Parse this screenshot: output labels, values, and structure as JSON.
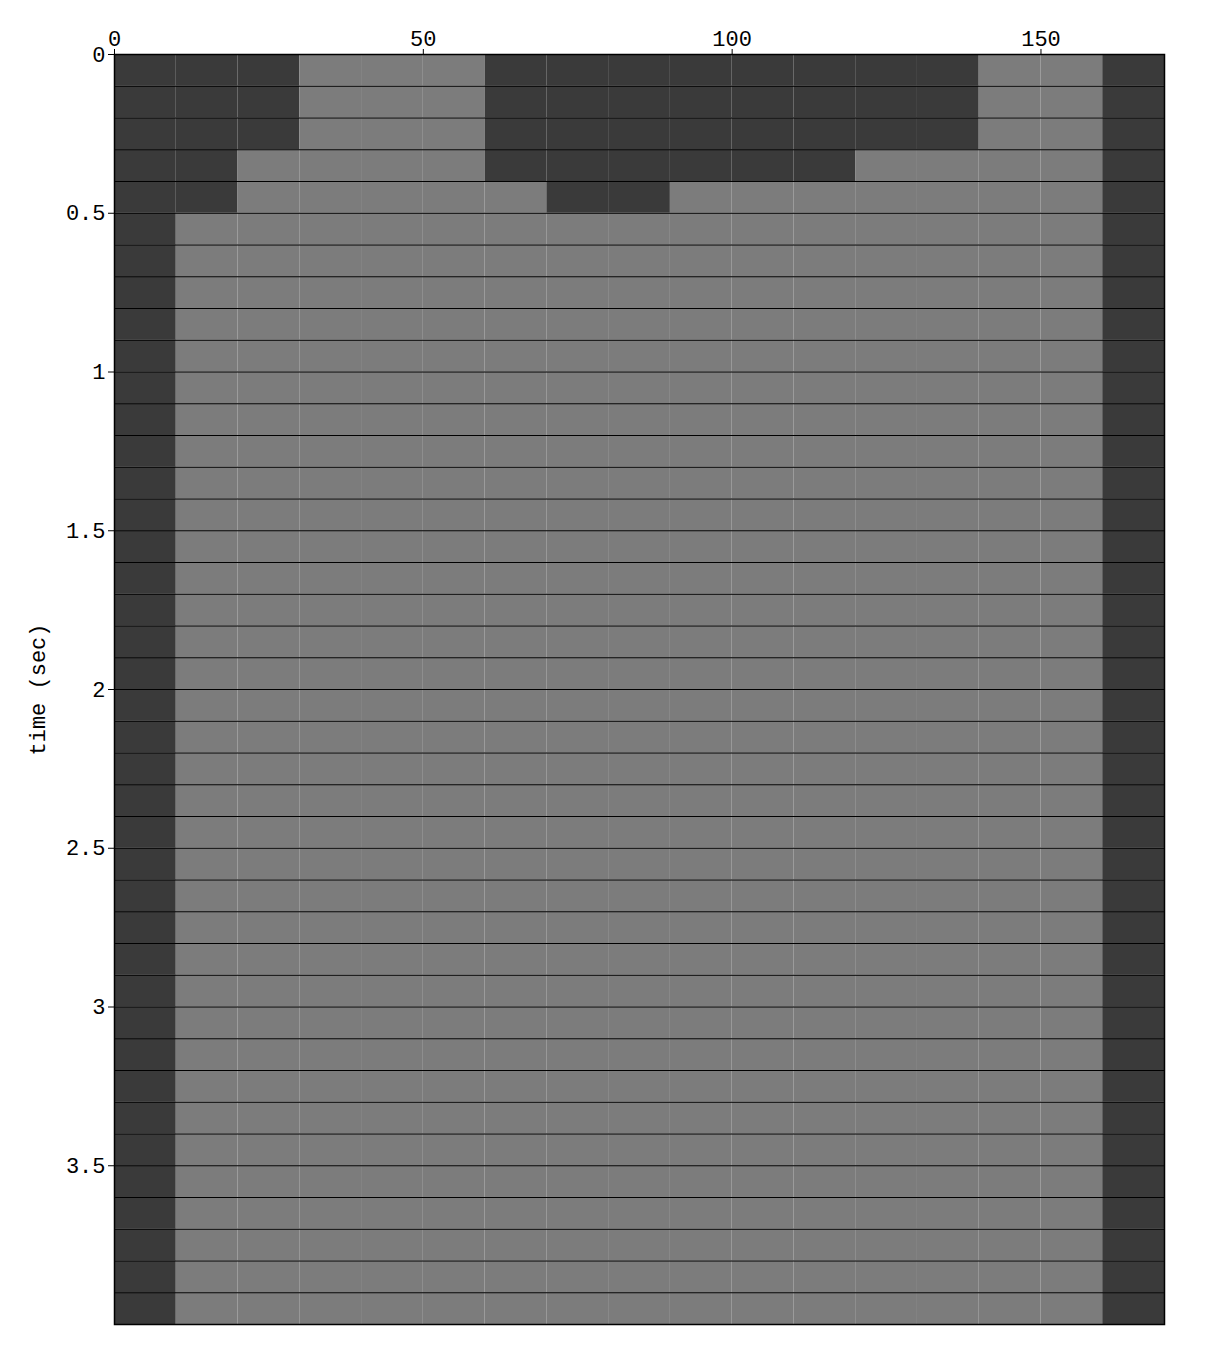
{
  "chart_data": {
    "type": "wiggle",
    "y_label": "time (sec)",
    "xlim": [
      0,
      170
    ],
    "xticks": [
      0,
      50,
      100,
      150
    ],
    "ylim": [
      0,
      4
    ],
    "yticks": [
      0,
      0.5,
      1,
      1.5,
      2,
      2.5,
      3,
      3.5
    ],
    "x_bins": [
      0,
      10,
      20,
      30,
      40,
      50,
      60,
      70,
      80,
      90,
      100,
      110,
      120,
      130,
      140,
      150,
      160,
      170
    ],
    "row_edges": [
      0,
      0.1,
      0.2,
      0.3,
      0.4,
      0.5,
      0.6,
      0.7,
      0.8,
      0.9,
      1,
      1.1,
      1.2,
      1.3,
      1.4,
      1.5,
      1.6,
      1.7,
      1.8,
      1.9,
      2,
      2.1,
      2.2,
      2.3,
      2.4,
      2.5,
      2.6,
      2.7,
      2.8,
      2.9,
      3,
      3.1,
      3.2,
      3.3,
      3.4,
      3.5,
      3.6,
      3.7,
      3.8,
      3.9,
      4
    ],
    "amplitude_range": [
      0,
      3
    ],
    "amplitude": [
      [
        3,
        3,
        3,
        2,
        2,
        2,
        3,
        3,
        3,
        3,
        3,
        3,
        3,
        3,
        2,
        2,
        3
      ],
      [
        3,
        3,
        3,
        2,
        2,
        2,
        3,
        3,
        3,
        3,
        3,
        3,
        3,
        3,
        2,
        2,
        3
      ],
      [
        3,
        3,
        3,
        2,
        2,
        2,
        3,
        3,
        3,
        3,
        3,
        3,
        3,
        3,
        2,
        2,
        3
      ],
      [
        3,
        3,
        2,
        2,
        2,
        2,
        3,
        3,
        3,
        3,
        3,
        3,
        2,
        2,
        2,
        2,
        3
      ],
      [
        3,
        3,
        2,
        2,
        2,
        2,
        2,
        3,
        3,
        2,
        2,
        2,
        2,
        2,
        2,
        2,
        3
      ],
      [
        3,
        2,
        2,
        2,
        2,
        2,
        2,
        2,
        2,
        2,
        2,
        2,
        2,
        2,
        2,
        2,
        3
      ],
      [
        3,
        2,
        2,
        2,
        2,
        2,
        2,
        2,
        2,
        2,
        2,
        2,
        2,
        2,
        2,
        2,
        3
      ],
      [
        3,
        2,
        2,
        2,
        2,
        2,
        2,
        2,
        2,
        2,
        2,
        2,
        2,
        2,
        2,
        2,
        3
      ],
      [
        3,
        2,
        2,
        2,
        2,
        2,
        2,
        2,
        2,
        2,
        2,
        2,
        2,
        2,
        2,
        2,
        3
      ],
      [
        3,
        2,
        2,
        2,
        2,
        2,
        2,
        2,
        2,
        2,
        2,
        2,
        2,
        2,
        2,
        2,
        3
      ],
      [
        3,
        2,
        2,
        2,
        2,
        2,
        2,
        2,
        2,
        2,
        2,
        2,
        2,
        2,
        2,
        2,
        3
      ],
      [
        3,
        2,
        2,
        2,
        2,
        2,
        2,
        2,
        2,
        2,
        2,
        2,
        2,
        2,
        2,
        2,
        3
      ],
      [
        3,
        2,
        2,
        2,
        2,
        2,
        2,
        2,
        2,
        2,
        2,
        2,
        2,
        2,
        2,
        2,
        3
      ],
      [
        3,
        2,
        2,
        2,
        2,
        2,
        2,
        2,
        2,
        2,
        2,
        2,
        2,
        2,
        2,
        2,
        3
      ],
      [
        3,
        2,
        2,
        2,
        2,
        2,
        2,
        2,
        2,
        2,
        2,
        2,
        2,
        2,
        2,
        2,
        3
      ],
      [
        3,
        2,
        2,
        2,
        2,
        2,
        2,
        2,
        2,
        2,
        2,
        2,
        2,
        2,
        2,
        2,
        3
      ],
      [
        3,
        2,
        2,
        2,
        2,
        2,
        2,
        2,
        2,
        2,
        2,
        2,
        2,
        2,
        2,
        2,
        3
      ],
      [
        3,
        2,
        2,
        2,
        2,
        2,
        2,
        2,
        2,
        2,
        2,
        2,
        2,
        2,
        2,
        2,
        3
      ],
      [
        3,
        2,
        2,
        2,
        2,
        2,
        2,
        2,
        2,
        2,
        2,
        2,
        2,
        2,
        2,
        2,
        3
      ],
      [
        3,
        2,
        2,
        2,
        2,
        2,
        2,
        2,
        2,
        2,
        2,
        2,
        2,
        2,
        2,
        2,
        3
      ],
      [
        3,
        2,
        2,
        2,
        2,
        2,
        2,
        2,
        2,
        2,
        2,
        2,
        2,
        2,
        2,
        2,
        3
      ],
      [
        3,
        2,
        2,
        2,
        2,
        2,
        2,
        2,
        2,
        2,
        2,
        2,
        2,
        2,
        2,
        2,
        3
      ],
      [
        3,
        2,
        2,
        2,
        2,
        2,
        2,
        2,
        2,
        2,
        2,
        2,
        2,
        2,
        2,
        2,
        3
      ],
      [
        3,
        2,
        2,
        2,
        2,
        2,
        2,
        2,
        2,
        2,
        2,
        2,
        2,
        2,
        2,
        2,
        3
      ],
      [
        3,
        2,
        2,
        2,
        2,
        2,
        2,
        2,
        2,
        2,
        2,
        2,
        2,
        2,
        2,
        2,
        3
      ],
      [
        3,
        2,
        2,
        2,
        2,
        2,
        2,
        2,
        2,
        2,
        2,
        2,
        2,
        2,
        2,
        2,
        3
      ],
      [
        3,
        2,
        2,
        2,
        2,
        2,
        2,
        2,
        2,
        2,
        2,
        2,
        2,
        2,
        2,
        2,
        3
      ],
      [
        3,
        2,
        2,
        2,
        2,
        2,
        2,
        2,
        2,
        2,
        2,
        2,
        2,
        2,
        2,
        2,
        3
      ],
      [
        3,
        2,
        2,
        2,
        2,
        2,
        2,
        2,
        2,
        2,
        2,
        2,
        2,
        2,
        2,
        2,
        3
      ],
      [
        3,
        2,
        2,
        2,
        2,
        2,
        2,
        2,
        2,
        2,
        2,
        2,
        2,
        2,
        2,
        2,
        3
      ],
      [
        3,
        2,
        2,
        2,
        2,
        2,
        2,
        2,
        2,
        2,
        2,
        2,
        2,
        2,
        2,
        2,
        3
      ],
      [
        3,
        2,
        2,
        2,
        2,
        2,
        2,
        2,
        2,
        2,
        2,
        2,
        2,
        2,
        2,
        2,
        3
      ],
      [
        3,
        2,
        2,
        2,
        2,
        2,
        2,
        2,
        2,
        2,
        2,
        2,
        2,
        2,
        2,
        2,
        3
      ],
      [
        3,
        2,
        2,
        2,
        2,
        2,
        2,
        2,
        2,
        2,
        2,
        2,
        2,
        2,
        2,
        2,
        3
      ],
      [
        3,
        2,
        2,
        2,
        2,
        2,
        2,
        2,
        2,
        2,
        2,
        2,
        2,
        2,
        2,
        2,
        3
      ],
      [
        3,
        2,
        2,
        2,
        2,
        2,
        2,
        2,
        2,
        2,
        2,
        2,
        2,
        2,
        2,
        2,
        3
      ],
      [
        3,
        2,
        2,
        2,
        2,
        2,
        2,
        2,
        2,
        2,
        2,
        2,
        2,
        2,
        2,
        2,
        3
      ],
      [
        3,
        2,
        2,
        2,
        2,
        2,
        2,
        2,
        2,
        2,
        2,
        2,
        2,
        2,
        2,
        2,
        3
      ],
      [
        3,
        2,
        2,
        2,
        2,
        2,
        2,
        2,
        2,
        2,
        2,
        2,
        2,
        2,
        2,
        2,
        3
      ],
      [
        3,
        2,
        2,
        2,
        2,
        2,
        2,
        2,
        2,
        2,
        2,
        2,
        2,
        2,
        2,
        2,
        3
      ]
    ],
    "grid": true,
    "color": "#000000"
  }
}
